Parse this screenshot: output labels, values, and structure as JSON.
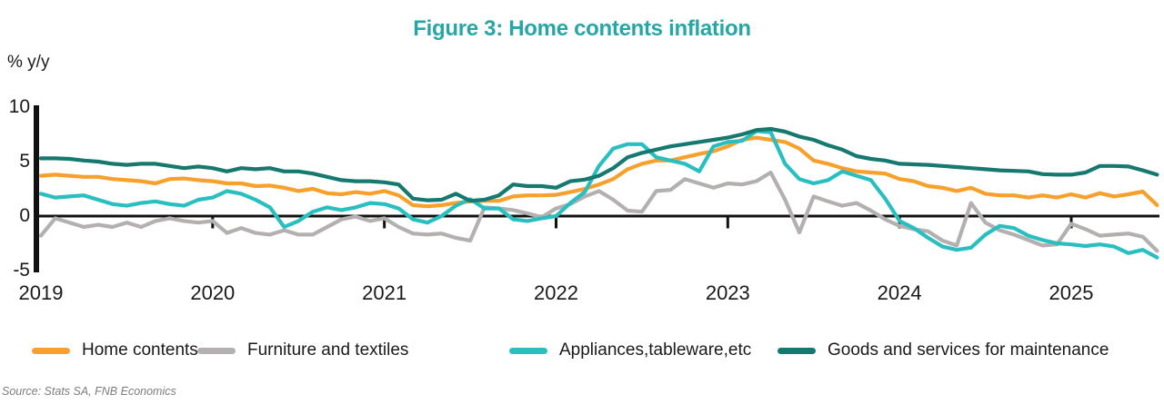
{
  "title": "Figure 3: Home contents inflation",
  "unit_label": "% y/y",
  "source": "Source: Stats SA, FNB Economics",
  "colors": {
    "title": "#27a7a4",
    "axis": "#111111",
    "home_contents": "#f7a02c",
    "furniture": "#b3b0af",
    "appliances": "#29bfc1",
    "goods_services": "#15796f"
  },
  "y_axis": {
    "ticks": [
      10,
      5,
      0,
      -5
    ],
    "min": -5,
    "max": 10
  },
  "x_axis": {
    "years": [
      "2019",
      "2020",
      "2021",
      "2022",
      "2023",
      "2024",
      "2025"
    ]
  },
  "legend": {
    "items": [
      "Home contents",
      "Furniture and textiles",
      "Appliances,tableware,etc",
      "Goods and services for maintenance"
    ]
  },
  "chart_data": {
    "type": "line",
    "title": "Figure 3: Home contents inflation",
    "ylabel": "% y/y",
    "ylim": [
      -5,
      10
    ],
    "grid": false,
    "legend_position": "bottom",
    "x_start": "2019-01",
    "x_frequency": "monthly",
    "x_end": "2025-07",
    "series": [
      {
        "name": "Home contents",
        "color_key": "home_contents",
        "values": [
          3.7,
          3.8,
          3.7,
          3.6,
          3.6,
          3.4,
          3.3,
          3.2,
          3.0,
          3.4,
          3.45,
          3.3,
          3.2,
          3.0,
          3.0,
          2.75,
          2.8,
          2.6,
          2.3,
          2.5,
          2.1,
          2.0,
          2.2,
          2.05,
          2.3,
          1.9,
          1.0,
          0.9,
          1.0,
          1.2,
          1.35,
          1.4,
          1.4,
          1.8,
          1.9,
          1.9,
          1.95,
          2.2,
          2.5,
          2.9,
          3.4,
          4.3,
          4.8,
          5.1,
          5.1,
          5.4,
          5.7,
          5.95,
          6.4,
          7.0,
          7.2,
          7.0,
          6.8,
          6.2,
          5.1,
          4.8,
          4.4,
          4.1,
          4.0,
          3.9,
          3.4,
          3.2,
          2.75,
          2.6,
          2.3,
          2.6,
          2.05,
          1.9,
          1.9,
          1.7,
          1.9,
          1.7,
          2.0,
          1.7,
          2.1,
          1.8,
          2.0,
          2.25,
          1.0
        ]
      },
      {
        "name": "Furniture and textiles",
        "color_key": "furniture",
        "values": [
          -1.8,
          -0.2,
          -0.6,
          -1.0,
          -0.8,
          -1.0,
          -0.6,
          -1.0,
          -0.45,
          -0.2,
          -0.45,
          -0.6,
          -0.45,
          -1.55,
          -1.1,
          -1.55,
          -1.7,
          -1.3,
          -1.7,
          -1.7,
          -1.0,
          -0.3,
          -0.05,
          -0.45,
          -0.2,
          -1.0,
          -1.6,
          -1.7,
          -1.6,
          -2.0,
          -2.25,
          0.8,
          0.7,
          0.55,
          0.25,
          -0.1,
          0.7,
          1.1,
          1.8,
          2.3,
          1.5,
          0.5,
          0.4,
          2.3,
          2.4,
          3.4,
          3.0,
          2.6,
          3.0,
          2.9,
          3.2,
          4.0,
          1.5,
          -1.5,
          1.8,
          1.35,
          0.95,
          1.2,
          0.5,
          -0.3,
          -0.9,
          -1.2,
          -1.4,
          -2.25,
          -2.7,
          1.2,
          -0.6,
          -1.3,
          -1.7,
          -2.2,
          -2.7,
          -2.6,
          -0.7,
          -1.2,
          -1.8,
          -1.7,
          -1.6,
          -1.9,
          -3.2
        ]
      },
      {
        "name": "Appliances,tableware,etc",
        "color_key": "appliances",
        "values": [
          2.05,
          1.7,
          1.8,
          1.9,
          1.5,
          1.1,
          0.95,
          1.2,
          1.35,
          1.1,
          0.95,
          1.5,
          1.7,
          2.3,
          2.05,
          1.5,
          0.8,
          -1.0,
          -0.45,
          0.4,
          0.8,
          0.55,
          0.8,
          1.2,
          1.1,
          0.7,
          -0.3,
          -0.6,
          0.0,
          0.95,
          1.55,
          0.7,
          0.7,
          -0.3,
          -0.45,
          -0.2,
          0.0,
          1.2,
          2.2,
          4.6,
          6.2,
          6.6,
          6.6,
          5.4,
          5.1,
          4.8,
          4.1,
          6.4,
          6.8,
          6.9,
          7.8,
          7.7,
          4.8,
          3.4,
          3.0,
          3.3,
          4.1,
          3.7,
          3.3,
          1.6,
          -0.45,
          -1.1,
          -2.0,
          -2.8,
          -3.1,
          -2.9,
          -1.7,
          -0.9,
          -1.1,
          -1.8,
          -2.2,
          -2.5,
          -2.6,
          -2.75,
          -2.6,
          -2.8,
          -3.4,
          -3.1,
          -3.8
        ]
      },
      {
        "name": "Goods and services for maintenance",
        "color_key": "goods_services",
        "values": [
          5.3,
          5.3,
          5.25,
          5.1,
          5.0,
          4.8,
          4.7,
          4.8,
          4.8,
          4.6,
          4.4,
          4.55,
          4.4,
          4.1,
          4.4,
          4.3,
          4.4,
          4.1,
          4.1,
          3.9,
          3.6,
          3.3,
          3.2,
          3.2,
          3.1,
          2.9,
          1.6,
          1.45,
          1.5,
          2.05,
          1.4,
          1.5,
          1.9,
          2.9,
          2.75,
          2.75,
          2.6,
          3.2,
          3.35,
          3.7,
          4.4,
          5.4,
          5.8,
          6.1,
          6.4,
          6.6,
          6.8,
          7.0,
          7.2,
          7.5,
          7.9,
          8.0,
          7.75,
          7.3,
          7.0,
          6.5,
          6.1,
          5.5,
          5.25,
          5.1,
          4.8,
          4.75,
          4.7,
          4.6,
          4.5,
          4.4,
          4.3,
          4.2,
          4.15,
          4.1,
          3.85,
          3.8,
          3.8,
          4.0,
          4.6,
          4.6,
          4.55,
          4.2,
          3.8
        ]
      }
    ]
  }
}
